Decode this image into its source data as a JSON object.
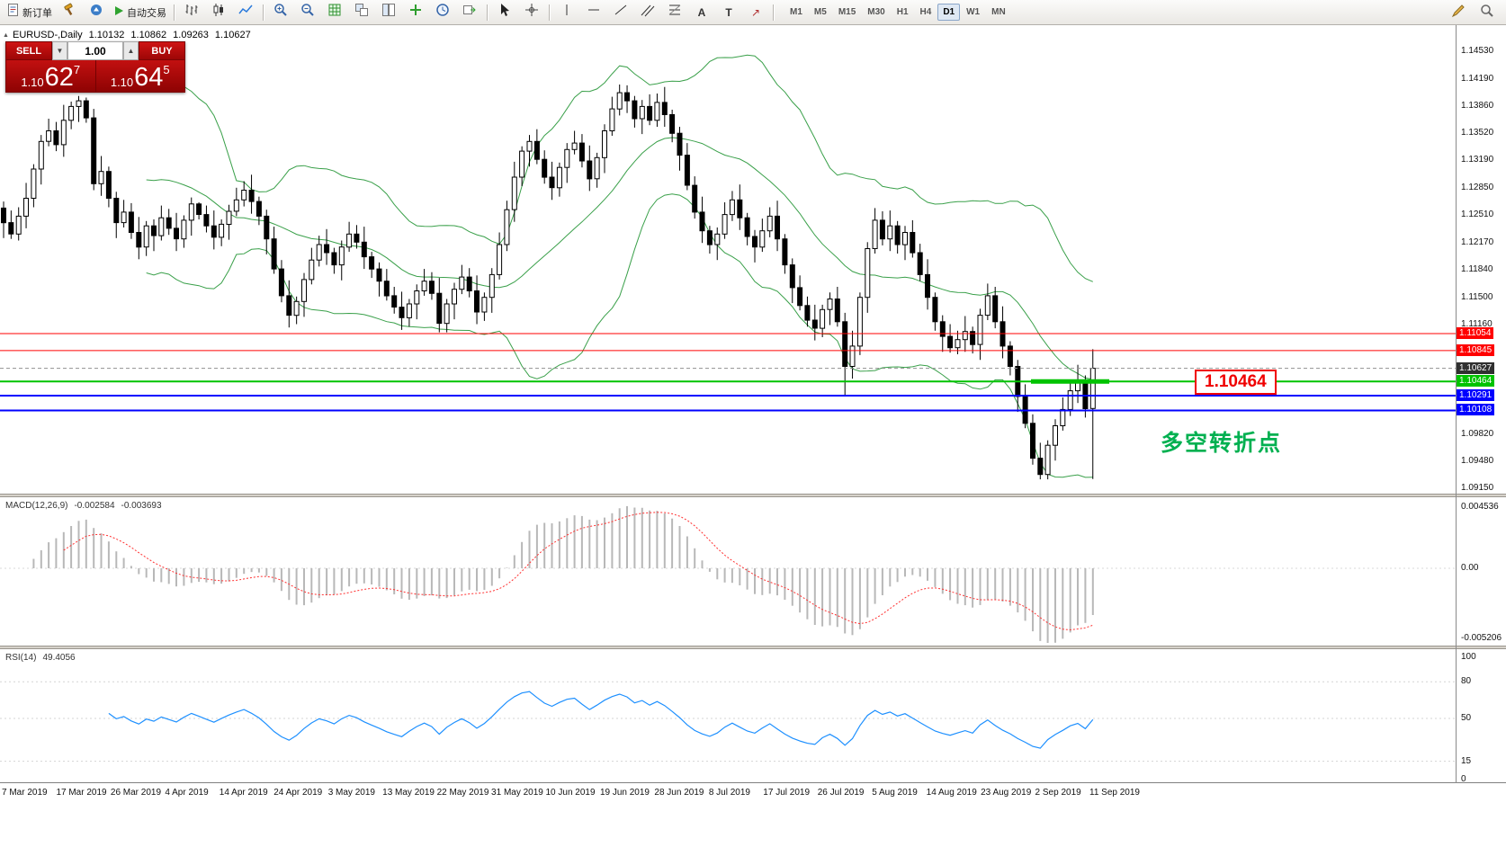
{
  "toolbar": {
    "new_order": "新订单",
    "auto_trading": "自动交易",
    "timeframes": [
      "M1",
      "M5",
      "M15",
      "M30",
      "H1",
      "H4",
      "D1",
      "W1",
      "MN"
    ],
    "active_timeframe": "D1"
  },
  "chart_header": {
    "symbol": "EURUSD-,Daily",
    "open": "1.10132",
    "high": "1.10862",
    "low": "1.09263",
    "close": "1.10627"
  },
  "trade_panel": {
    "sell_label": "SELL",
    "buy_label": "BUY",
    "volume": "1.00",
    "sell_price": {
      "base": "1.10",
      "big": "62",
      "pip": "7"
    },
    "buy_price": {
      "base": "1.10",
      "big": "64",
      "pip": "5"
    }
  },
  "annotations": {
    "callout": "1.10464",
    "callout_color": "#f00000",
    "note": "多空转折点",
    "note_color": "#00b050"
  },
  "levels": [
    {
      "label": "1.11054",
      "value": 1.11054,
      "color": "#ff0000",
      "width": 1,
      "style": "solid"
    },
    {
      "label": "1.10845",
      "value": 1.10845,
      "color": "#ff0000",
      "width": 1,
      "style": "solid"
    },
    {
      "label": "1.10627",
      "value": 1.10627,
      "color": "#909090",
      "width": 1,
      "style": "dash",
      "tag": "#303030"
    },
    {
      "label": "1.10464",
      "value": 1.10464,
      "color": "#00c300",
      "width": 2,
      "style": "solid",
      "thick_segment": true
    },
    {
      "label": "1.10291",
      "value": 1.10291,
      "color": "#0000ff",
      "width": 2,
      "style": "solid"
    },
    {
      "label": "1.10108",
      "value": 1.10108,
      "color": "#0000ff",
      "width": 2,
      "style": "solid"
    }
  ],
  "price_axis": [
    "1.14530",
    "1.14190",
    "1.13860",
    "1.13520",
    "1.13190",
    "1.12850",
    "1.12510",
    "1.12170",
    "1.11840",
    "1.11500",
    "1.11160",
    "1.09820",
    "1.09480",
    "1.09150"
  ],
  "macd_panel": {
    "label": "MACD(12,26,9)",
    "value_main": "-0.002584",
    "value_signal": "-0.003693",
    "axis": [
      "0.004536",
      "0.00",
      "-0.005206"
    ]
  },
  "rsi_panel": {
    "label": "RSI(14)",
    "value": "49.4056",
    "axis": [
      "100",
      "80",
      "50",
      "15",
      "0"
    ]
  },
  "time_axis": [
    "7 Mar 2019",
    "17 Mar 2019",
    "26 Mar 2019",
    "4 Apr 2019",
    "14 Apr 2019",
    "24 Apr 2019",
    "3 May 2019",
    "13 May 2019",
    "22 May 2019",
    "31 May 2019",
    "10 Jun 2019",
    "19 Jun 2019",
    "28 Jun 2019",
    "8 Jul 2019",
    "17 Jul 2019",
    "26 Jul 2019",
    "5 Aug 2019",
    "14 Aug 2019",
    "23 Aug 2019",
    "2 Sep 2019",
    "11 Sep 2019"
  ],
  "chart_data": {
    "type": "candlestick",
    "symbol": "EURUSD",
    "timeframe": "Daily",
    "ylim": [
      1.09084,
      1.14851
    ],
    "macd_params": [
      12,
      26,
      9
    ],
    "rsi_period": 14,
    "rsi_levels": [
      80,
      50,
      15
    ],
    "colors": {
      "bollinger": "#3aa04a",
      "candle_up": "#ffffff",
      "candle_down": "#000000",
      "wick": "#000000",
      "macd_hist": "#b8b8b8",
      "macd_signal": "#ff3030",
      "rsi": "#1e90ff"
    },
    "candles": [
      [
        1.126,
        1.1268,
        1.1223,
        1.1242
      ],
      [
        1.1242,
        1.1257,
        1.1222,
        1.1228
      ],
      [
        1.1228,
        1.1261,
        1.122,
        1.125
      ],
      [
        1.125,
        1.1291,
        1.1235,
        1.1272
      ],
      [
        1.1272,
        1.1314,
        1.1261,
        1.1308
      ],
      [
        1.1308,
        1.135,
        1.1289,
        1.1342
      ],
      [
        1.1342,
        1.137,
        1.1336,
        1.1355
      ],
      [
        1.1355,
        1.1366,
        1.133,
        1.1338
      ],
      [
        1.1338,
        1.1387,
        1.1323,
        1.1368
      ],
      [
        1.1368,
        1.1391,
        1.1357,
        1.1385
      ],
      [
        1.1385,
        1.1398,
        1.1366,
        1.1392
      ],
      [
        1.1392,
        1.1396,
        1.1365,
        1.1371
      ],
      [
        1.1371,
        1.1382,
        1.1282,
        1.129
      ],
      [
        1.129,
        1.1324,
        1.1275,
        1.1305
      ],
      [
        1.1305,
        1.1311,
        1.1261,
        1.1272
      ],
      [
        1.1272,
        1.128,
        1.1223,
        1.1242
      ],
      [
        1.1242,
        1.127,
        1.1236,
        1.1255
      ],
      [
        1.1255,
        1.1266,
        1.1222,
        1.123
      ],
      [
        1.123,
        1.1249,
        1.1197,
        1.1212
      ],
      [
        1.1212,
        1.1244,
        1.1201,
        1.1238
      ],
      [
        1.1238,
        1.1246,
        1.1207,
        1.1226
      ],
      [
        1.1226,
        1.1263,
        1.122,
        1.1248
      ],
      [
        1.1248,
        1.1259,
        1.1227,
        1.1235
      ],
      [
        1.1235,
        1.1254,
        1.1207,
        1.1222
      ],
      [
        1.1222,
        1.1251,
        1.1211,
        1.1245
      ],
      [
        1.1245,
        1.1273,
        1.1226,
        1.1265
      ],
      [
        1.1265,
        1.1267,
        1.1246,
        1.1252
      ],
      [
        1.1252,
        1.1263,
        1.123,
        1.1238
      ],
      [
        1.1238,
        1.1257,
        1.1209,
        1.1224
      ],
      [
        1.1224,
        1.1246,
        1.1213,
        1.124
      ],
      [
        1.124,
        1.1264,
        1.1221,
        1.1256
      ],
      [
        1.1256,
        1.1285,
        1.125,
        1.127
      ],
      [
        1.127,
        1.1293,
        1.1262,
        1.1282
      ],
      [
        1.1282,
        1.1301,
        1.1253,
        1.1268
      ],
      [
        1.1268,
        1.1274,
        1.1239,
        1.125
      ],
      [
        1.125,
        1.1258,
        1.1203,
        1.1222
      ],
      [
        1.1222,
        1.1237,
        1.1179,
        1.1185
      ],
      [
        1.1185,
        1.1196,
        1.1144,
        1.1152
      ],
      [
        1.1152,
        1.1171,
        1.1113,
        1.1128
      ],
      [
        1.1128,
        1.1151,
        1.1117,
        1.1145
      ],
      [
        1.1145,
        1.118,
        1.1126,
        1.1172
      ],
      [
        1.1172,
        1.1211,
        1.1166,
        1.1196
      ],
      [
        1.1196,
        1.1226,
        1.1188,
        1.1215
      ],
      [
        1.1215,
        1.1234,
        1.119,
        1.1205
      ],
      [
        1.1205,
        1.1211,
        1.1179,
        1.119
      ],
      [
        1.119,
        1.122,
        1.1171,
        1.1212
      ],
      [
        1.1212,
        1.1243,
        1.1206,
        1.1228
      ],
      [
        1.1228,
        1.1239,
        1.121,
        1.1218
      ],
      [
        1.1218,
        1.1237,
        1.1185,
        1.12
      ],
      [
        1.12,
        1.1206,
        1.1174,
        1.1185
      ],
      [
        1.1185,
        1.1193,
        1.1151,
        1.117
      ],
      [
        1.117,
        1.1185,
        1.1146,
        1.1152
      ],
      [
        1.1152,
        1.1163,
        1.113,
        1.1138
      ],
      [
        1.1138,
        1.1157,
        1.111,
        1.1125
      ],
      [
        1.1125,
        1.1148,
        1.1114,
        1.1142
      ],
      [
        1.1142,
        1.1166,
        1.1123,
        1.1158
      ],
      [
        1.1158,
        1.1185,
        1.1152,
        1.117
      ],
      [
        1.117,
        1.1181,
        1.1147,
        1.1155
      ],
      [
        1.1155,
        1.1174,
        1.1107,
        1.1118
      ],
      [
        1.1118,
        1.1148,
        1.1107,
        1.1142
      ],
      [
        1.1142,
        1.1168,
        1.1123,
        1.116
      ],
      [
        1.116,
        1.119,
        1.1154,
        1.1175
      ],
      [
        1.1175,
        1.1186,
        1.115,
        1.1158
      ],
      [
        1.1158,
        1.1177,
        1.1117,
        1.1132
      ],
      [
        1.1132,
        1.1156,
        1.1121,
        1.115
      ],
      [
        1.115,
        1.1186,
        1.1131,
        1.1178
      ],
      [
        1.1178,
        1.123,
        1.1172,
        1.1215
      ],
      [
        1.1215,
        1.1269,
        1.1207,
        1.1258
      ],
      [
        1.1258,
        1.1317,
        1.1243,
        1.1298
      ],
      [
        1.1298,
        1.1336,
        1.1287,
        1.133
      ],
      [
        1.133,
        1.135,
        1.1311,
        1.1342
      ],
      [
        1.1342,
        1.1357,
        1.1314,
        1.132
      ],
      [
        1.132,
        1.1331,
        1.129,
        1.1298
      ],
      [
        1.1298,
        1.1317,
        1.127,
        1.1285
      ],
      [
        1.1285,
        1.1316,
        1.1274,
        1.131
      ],
      [
        1.131,
        1.134,
        1.1291,
        1.1332
      ],
      [
        1.1332,
        1.1355,
        1.1326,
        1.134
      ],
      [
        1.134,
        1.1351,
        1.131,
        1.1318
      ],
      [
        1.1318,
        1.1337,
        1.1281,
        1.1296
      ],
      [
        1.1296,
        1.1328,
        1.1285,
        1.1322
      ],
      [
        1.1322,
        1.1363,
        1.1303,
        1.1355
      ],
      [
        1.1355,
        1.1397,
        1.1349,
        1.1382
      ],
      [
        1.1382,
        1.1412,
        1.1374,
        1.1402
      ],
      [
        1.1402,
        1.1411,
        1.1377,
        1.1392
      ],
      [
        1.1392,
        1.1398,
        1.1359,
        1.137
      ],
      [
        1.137,
        1.1393,
        1.1351,
        1.1385
      ],
      [
        1.1385,
        1.14,
        1.1362,
        1.1368
      ],
      [
        1.1368,
        1.1401,
        1.136,
        1.139
      ],
      [
        1.139,
        1.1409,
        1.136,
        1.1375
      ],
      [
        1.1375,
        1.1381,
        1.1341,
        1.1352
      ],
      [
        1.1352,
        1.136,
        1.1306,
        1.1325
      ],
      [
        1.1325,
        1.134,
        1.1282,
        1.1288
      ],
      [
        1.1288,
        1.1299,
        1.1247,
        1.1255
      ],
      [
        1.1255,
        1.1274,
        1.1217,
        1.1232
      ],
      [
        1.1232,
        1.1238,
        1.1204,
        1.1215
      ],
      [
        1.1215,
        1.1236,
        1.1196,
        1.1228
      ],
      [
        1.1228,
        1.1267,
        1.1222,
        1.1252
      ],
      [
        1.1252,
        1.1281,
        1.1244,
        1.127
      ],
      [
        1.127,
        1.1289,
        1.1233,
        1.1248
      ],
      [
        1.1248,
        1.1254,
        1.1214,
        1.1225
      ],
      [
        1.1225,
        1.1233,
        1.1193,
        1.1212
      ],
      [
        1.1212,
        1.1247,
        1.1206,
        1.1232
      ],
      [
        1.1232,
        1.1261,
        1.1224,
        1.125
      ],
      [
        1.125,
        1.1269,
        1.1207,
        1.1222
      ],
      [
        1.1222,
        1.1228,
        1.1179,
        1.119
      ],
      [
        1.119,
        1.1198,
        1.1143,
        1.1162
      ],
      [
        1.1162,
        1.1177,
        1.1134,
        1.114
      ],
      [
        1.114,
        1.1151,
        1.1114,
        1.1122
      ],
      [
        1.1122,
        1.1141,
        1.1097,
        1.1112
      ],
      [
        1.1112,
        1.1141,
        1.1101,
        1.1135
      ],
      [
        1.1135,
        1.1156,
        1.1116,
        1.1148
      ],
      [
        1.1148,
        1.1163,
        1.1114,
        1.112
      ],
      [
        1.112,
        1.1131,
        1.103,
        1.1065
      ],
      [
        1.1065,
        1.1109,
        1.105,
        1.109
      ],
      [
        1.109,
        1.1156,
        1.1079,
        1.115
      ],
      [
        1.115,
        1.1218,
        1.1131,
        1.121
      ],
      [
        1.121,
        1.126,
        1.1204,
        1.1245
      ],
      [
        1.1245,
        1.1256,
        1.1214,
        1.1222
      ],
      [
        1.1222,
        1.1257,
        1.1207,
        1.1238
      ],
      [
        1.1238,
        1.1244,
        1.1204,
        1.1215
      ],
      [
        1.1215,
        1.1238,
        1.1196,
        1.123
      ],
      [
        1.123,
        1.1245,
        1.1199,
        1.1205
      ],
      [
        1.1205,
        1.1216,
        1.117,
        1.1178
      ],
      [
        1.1178,
        1.1197,
        1.1135,
        1.115
      ],
      [
        1.115,
        1.1156,
        1.1109,
        1.112
      ],
      [
        1.112,
        1.1128,
        1.1083,
        1.1102
      ],
      [
        1.1102,
        1.1117,
        1.1082,
        1.1088
      ],
      [
        1.1088,
        1.1109,
        1.108,
        1.1098
      ],
      [
        1.1098,
        1.1127,
        1.1083,
        1.1108
      ],
      [
        1.1108,
        1.1114,
        1.1081,
        1.1092
      ],
      [
        1.1092,
        1.1136,
        1.1073,
        1.1128
      ],
      [
        1.1128,
        1.1167,
        1.1122,
        1.1152
      ],
      [
        1.1152,
        1.1163,
        1.1112,
        1.112
      ],
      [
        1.112,
        1.1139,
        1.1075,
        1.109
      ],
      [
        1.109,
        1.1096,
        1.1054,
        1.1065
      ],
      [
        1.1065,
        1.1073,
        1.1009,
        1.1028
      ],
      [
        1.1028,
        1.1043,
        1.0989,
        1.0995
      ],
      [
        1.0995,
        1.1006,
        1.0944,
        1.0952
      ],
      [
        1.0952,
        1.0971,
        1.0926,
        1.0932
      ],
      [
        1.0932,
        1.0974,
        1.0926,
        1.0968
      ],
      [
        1.0968,
        1.1,
        1.0949,
        1.0992
      ],
      [
        1.0992,
        1.1027,
        1.0986,
        1.1012
      ],
      [
        1.1012,
        1.1046,
        1.1004,
        1.1035
      ],
      [
        1.1035,
        1.1067,
        1.102,
        1.1048
      ],
      [
        1.1048,
        1.1054,
        1.1002,
        1.1013
      ],
      [
        1.10132,
        1.10862,
        1.09263,
        1.10627
      ]
    ]
  }
}
